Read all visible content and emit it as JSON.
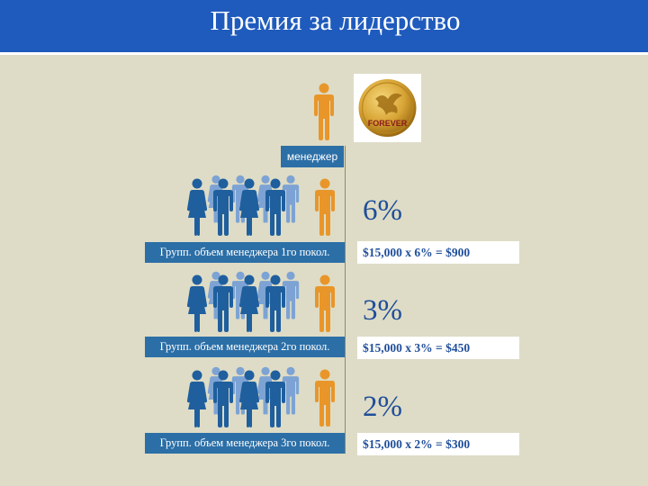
{
  "title": "Премия за лидерство",
  "manager_label": "менеджер",
  "logo": {
    "icon": "forever-coin-logo",
    "text": "FOREVER"
  },
  "tiers": [
    {
      "group_label": "Групп. объем менеджера 1го покол.",
      "percent": "6%",
      "calc": "$15,000 x 6% = $900"
    },
    {
      "group_label": "Групп. объем менеджера 2го покол.",
      "percent": "3%",
      "calc": "$15,000 x 3% = $450"
    },
    {
      "group_label": "Групп. объем менеджера 3го покол.",
      "percent": "2%",
      "calc": "$15,000 x 2% = $300"
    }
  ],
  "colors": {
    "header": "#1f5bbd",
    "manager_figure": "#e8962a",
    "group_dark": "#1f5f9e",
    "group_light": "#7da3d4",
    "accent_text": "#1f4e9a"
  }
}
